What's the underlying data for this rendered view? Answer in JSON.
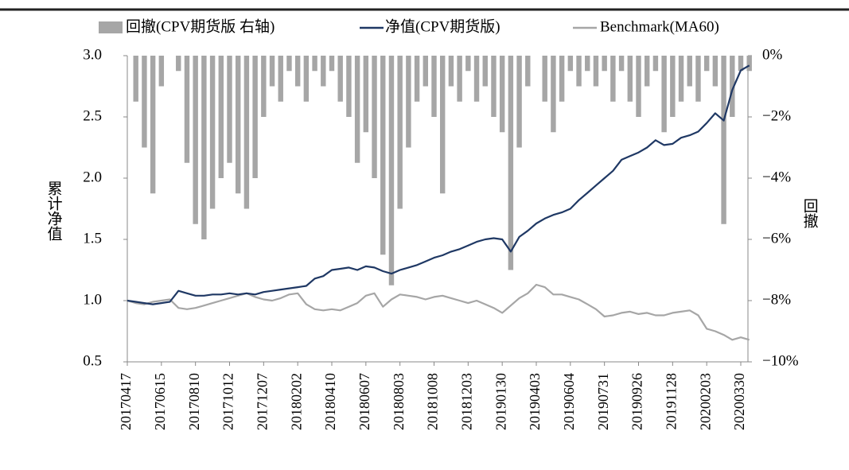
{
  "chart_data": {
    "type": "combo",
    "y_label": "累计净值",
    "y2_label": "回撤",
    "categories": [
      "20170417",
      null,
      null,
      null,
      "20170615",
      null,
      null,
      null,
      "20170810",
      null,
      null,
      null,
      "20171012",
      null,
      null,
      null,
      "20171207",
      null,
      null,
      null,
      "20180202",
      null,
      null,
      null,
      "20180410",
      null,
      null,
      null,
      "20180607",
      null,
      null,
      null,
      "20180803",
      null,
      null,
      null,
      "20181008",
      null,
      null,
      null,
      "20181203",
      null,
      null,
      null,
      "20190130",
      null,
      null,
      null,
      "20190403",
      null,
      null,
      null,
      "20190604",
      null,
      null,
      null,
      "20190731",
      null,
      null,
      null,
      "20190926",
      null,
      null,
      null,
      "20191128",
      null,
      null,
      null,
      "20200203",
      null,
      null,
      null,
      "20200330",
      null
    ],
    "series": [
      {
        "name": "回撤(CPV期货版 右轴)",
        "type": "bar",
        "axis": "y2",
        "color": "#a6a6a6",
        "values": [
          0,
          -1.5,
          -3.0,
          -4.5,
          -1.0,
          0,
          -0.5,
          -3.5,
          -5.5,
          -6.0,
          -5.0,
          -4.0,
          -3.5,
          -4.5,
          -5.0,
          -4.0,
          -2.0,
          -1.0,
          -1.5,
          -0.5,
          -1.0,
          -1.5,
          -0.5,
          -1.0,
          -0.5,
          -1.5,
          -2.0,
          -3.5,
          -2.5,
          -4.0,
          -6.5,
          -7.5,
          -5.0,
          -3.0,
          -1.5,
          -1.0,
          -2.0,
          -4.5,
          -1.0,
          -1.5,
          -0.5,
          -1.5,
          -1.0,
          -2.0,
          -2.5,
          -7.0,
          -3.0,
          -1.0,
          0,
          -1.5,
          -2.5,
          -1.5,
          -0.5,
          -1.0,
          -0.5,
          -1.0,
          -0.5,
          -1.5,
          -0.5,
          -1.5,
          -2.0,
          -1.0,
          -0.5,
          -2.5,
          -2.0,
          -1.5,
          -1.0,
          -1.5,
          -0.5,
          -1.0,
          -5.5,
          -2.0,
          -0.5,
          -0.5
        ]
      },
      {
        "name": "净值(CPV期货版)",
        "type": "line",
        "color": "#1f3864",
        "values": [
          1.0,
          0.99,
          0.98,
          0.97,
          0.98,
          0.99,
          1.08,
          1.06,
          1.04,
          1.04,
          1.05,
          1.05,
          1.06,
          1.05,
          1.06,
          1.05,
          1.07,
          1.08,
          1.09,
          1.1,
          1.11,
          1.12,
          1.18,
          1.2,
          1.25,
          1.26,
          1.27,
          1.25,
          1.28,
          1.27,
          1.24,
          1.22,
          1.25,
          1.27,
          1.29,
          1.32,
          1.35,
          1.37,
          1.4,
          1.42,
          1.45,
          1.48,
          1.5,
          1.51,
          1.5,
          1.4,
          1.52,
          1.57,
          1.63,
          1.67,
          1.7,
          1.72,
          1.75,
          1.82,
          1.88,
          1.94,
          2.0,
          2.06,
          2.15,
          2.18,
          2.21,
          2.25,
          2.31,
          2.27,
          2.28,
          2.33,
          2.35,
          2.38,
          2.45,
          2.53,
          2.47,
          2.72,
          2.88,
          2.92
        ]
      },
      {
        "name": "Benchmark(MA60)",
        "type": "line",
        "color": "#a6a6a6",
        "values": [
          1.0,
          0.98,
          0.97,
          0.99,
          1.0,
          1.01,
          0.94,
          0.93,
          0.94,
          0.96,
          0.98,
          1.0,
          1.02,
          1.04,
          1.06,
          1.03,
          1.01,
          1.0,
          1.02,
          1.05,
          1.06,
          0.97,
          0.93,
          0.92,
          0.93,
          0.92,
          0.95,
          0.98,
          1.04,
          1.06,
          0.95,
          1.01,
          1.05,
          1.04,
          1.03,
          1.01,
          1.03,
          1.04,
          1.02,
          1.0,
          0.98,
          1.0,
          0.97,
          0.94,
          0.9,
          0.96,
          1.02,
          1.06,
          1.13,
          1.11,
          1.05,
          1.05,
          1.03,
          1.01,
          0.97,
          0.93,
          0.87,
          0.88,
          0.9,
          0.91,
          0.89,
          0.9,
          0.88,
          0.88,
          0.9,
          0.91,
          0.92,
          0.88,
          0.77,
          0.75,
          0.72,
          0.68,
          0.7,
          0.68
        ]
      }
    ],
    "ylim": [
      0.5,
      3.0
    ],
    "yticks": [
      {
        "value": 0.5,
        "label": "0.5"
      },
      {
        "value": 1.0,
        "label": "1.0"
      },
      {
        "value": 1.5,
        "label": "1.5"
      },
      {
        "value": 2.0,
        "label": "2.0"
      },
      {
        "value": 2.5,
        "label": "2.5"
      },
      {
        "value": 3.0,
        "label": "3.0"
      }
    ],
    "y2lim": [
      -10,
      0
    ],
    "y2ticks": [
      {
        "value": -10,
        "label": "−10%"
      },
      {
        "value": -8,
        "label": "−8%"
      },
      {
        "value": -6,
        "label": "−6%"
      },
      {
        "value": -4,
        "label": "−4%"
      },
      {
        "value": -2,
        "label": "−2%"
      },
      {
        "value": 0,
        "label": "0%"
      }
    ],
    "legend": "top"
  }
}
